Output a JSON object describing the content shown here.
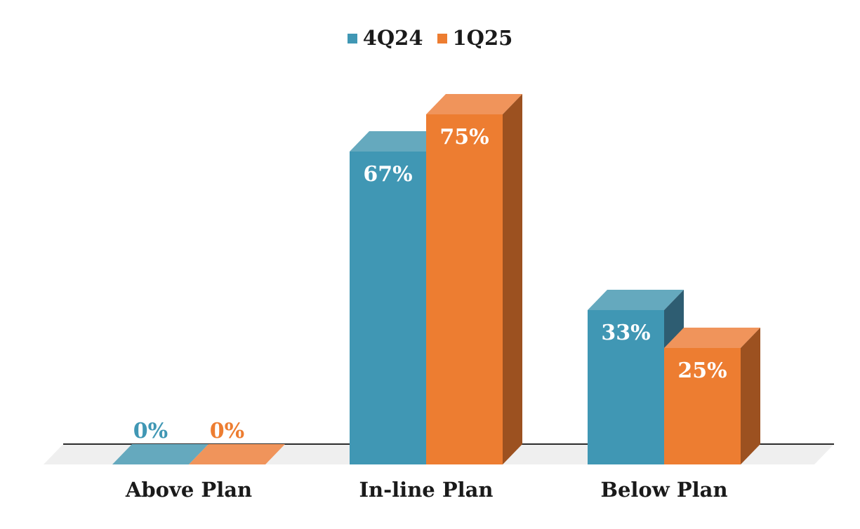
{
  "chart_data": {
    "type": "bar",
    "variant": "3d-clustered-column",
    "title": "",
    "xlabel": "",
    "ylabel": "",
    "categories": [
      "Above Plan",
      "In-line Plan",
      "Below Plan"
    ],
    "series": [
      {
        "name": "4Q24",
        "values": [
          0,
          67,
          33
        ],
        "data_labels": [
          "0%",
          "67%",
          "33%"
        ],
        "colors": {
          "front": "#4097B4",
          "top": "#65A9BE",
          "side": "#2E5D72"
        }
      },
      {
        "name": "1Q25",
        "values": [
          0,
          75,
          25
        ],
        "data_labels": [
          "0%",
          "75%",
          "25%"
        ],
        "colors": {
          "front": "#ED7D31",
          "top": "#F0945B",
          "side": "#9C5120"
        }
      }
    ],
    "ylim": [
      0,
      100
    ],
    "grid": false,
    "value_axis_visible": false,
    "legend_position": "top",
    "data_label_color_on_bar": "#FFFFFF",
    "text_color": "#1A1A1A",
    "axis_line_color": "#2B2B2B",
    "floor_color": "#EFEFEF",
    "background_color": "#FFFFFF"
  }
}
